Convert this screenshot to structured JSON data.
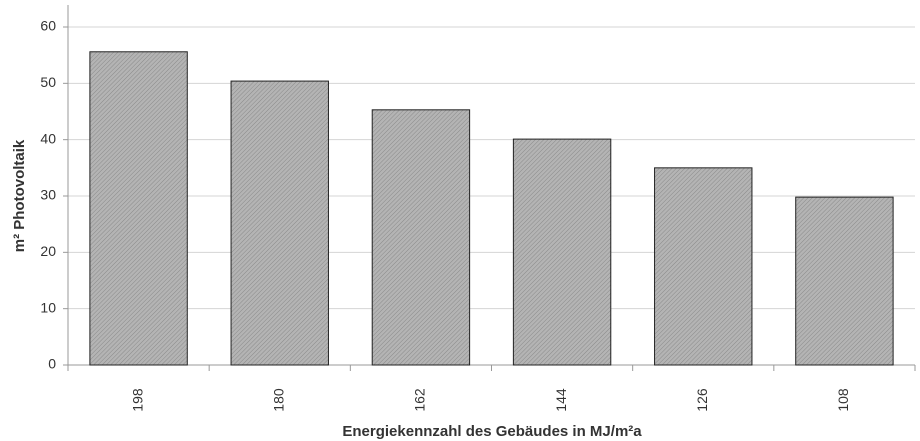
{
  "chart_data": {
    "type": "bar",
    "x_label": "Energiekennzahl des Gebäudes in MJ/m²a",
    "y_label": "m² Photovoltaik",
    "categories": [
      "198",
      "180",
      "162",
      "144",
      "126",
      "108"
    ],
    "values": [
      55.6,
      50.4,
      45.3,
      40.1,
      35,
      29.8
    ],
    "color": "#a8a8a8",
    "ylim": [
      0,
      60
    ],
    "yticks": [
      0,
      10,
      20,
      30,
      40,
      50,
      60
    ],
    "grid": true
  }
}
